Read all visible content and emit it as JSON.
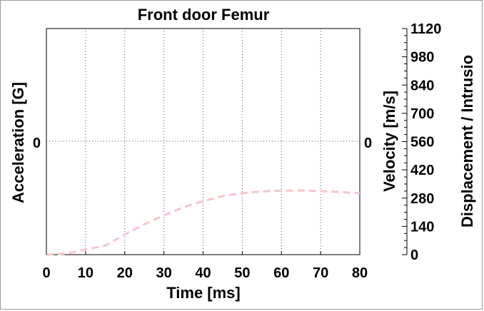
{
  "chart_data": {
    "type": "line",
    "title": "Front door Femur",
    "xlabel": "Time [ms]",
    "ylabel_left": "Acceleration [G]",
    "ylabel_right_velocity": "Velocity [m/s]",
    "ylabel_right_displacement": "Displacement / Intrusio",
    "xlim": [
      0,
      80
    ],
    "x_ticks": [
      0,
      10,
      20,
      30,
      40,
      50,
      60,
      70,
      80
    ],
    "left_axis_tick": "0",
    "velocity_axis_tick": "0",
    "displacement_ylim": [
      0,
      1120
    ],
    "displacement_ticks": [
      0,
      140,
      280,
      420,
      560,
      700,
      840,
      980,
      1120
    ],
    "grid": true,
    "series": [
      {
        "axis": "displacement",
        "color": "#f7c6cc",
        "style": "dashed",
        "x": [
          0,
          5,
          10,
          15,
          20,
          25,
          30,
          35,
          40,
          45,
          50,
          55,
          60,
          65,
          70,
          75,
          80
        ],
        "y": [
          0,
          5,
          25,
          45,
          100,
          150,
          195,
          235,
          265,
          290,
          305,
          313,
          317,
          318,
          315,
          310,
          305
        ]
      }
    ]
  }
}
